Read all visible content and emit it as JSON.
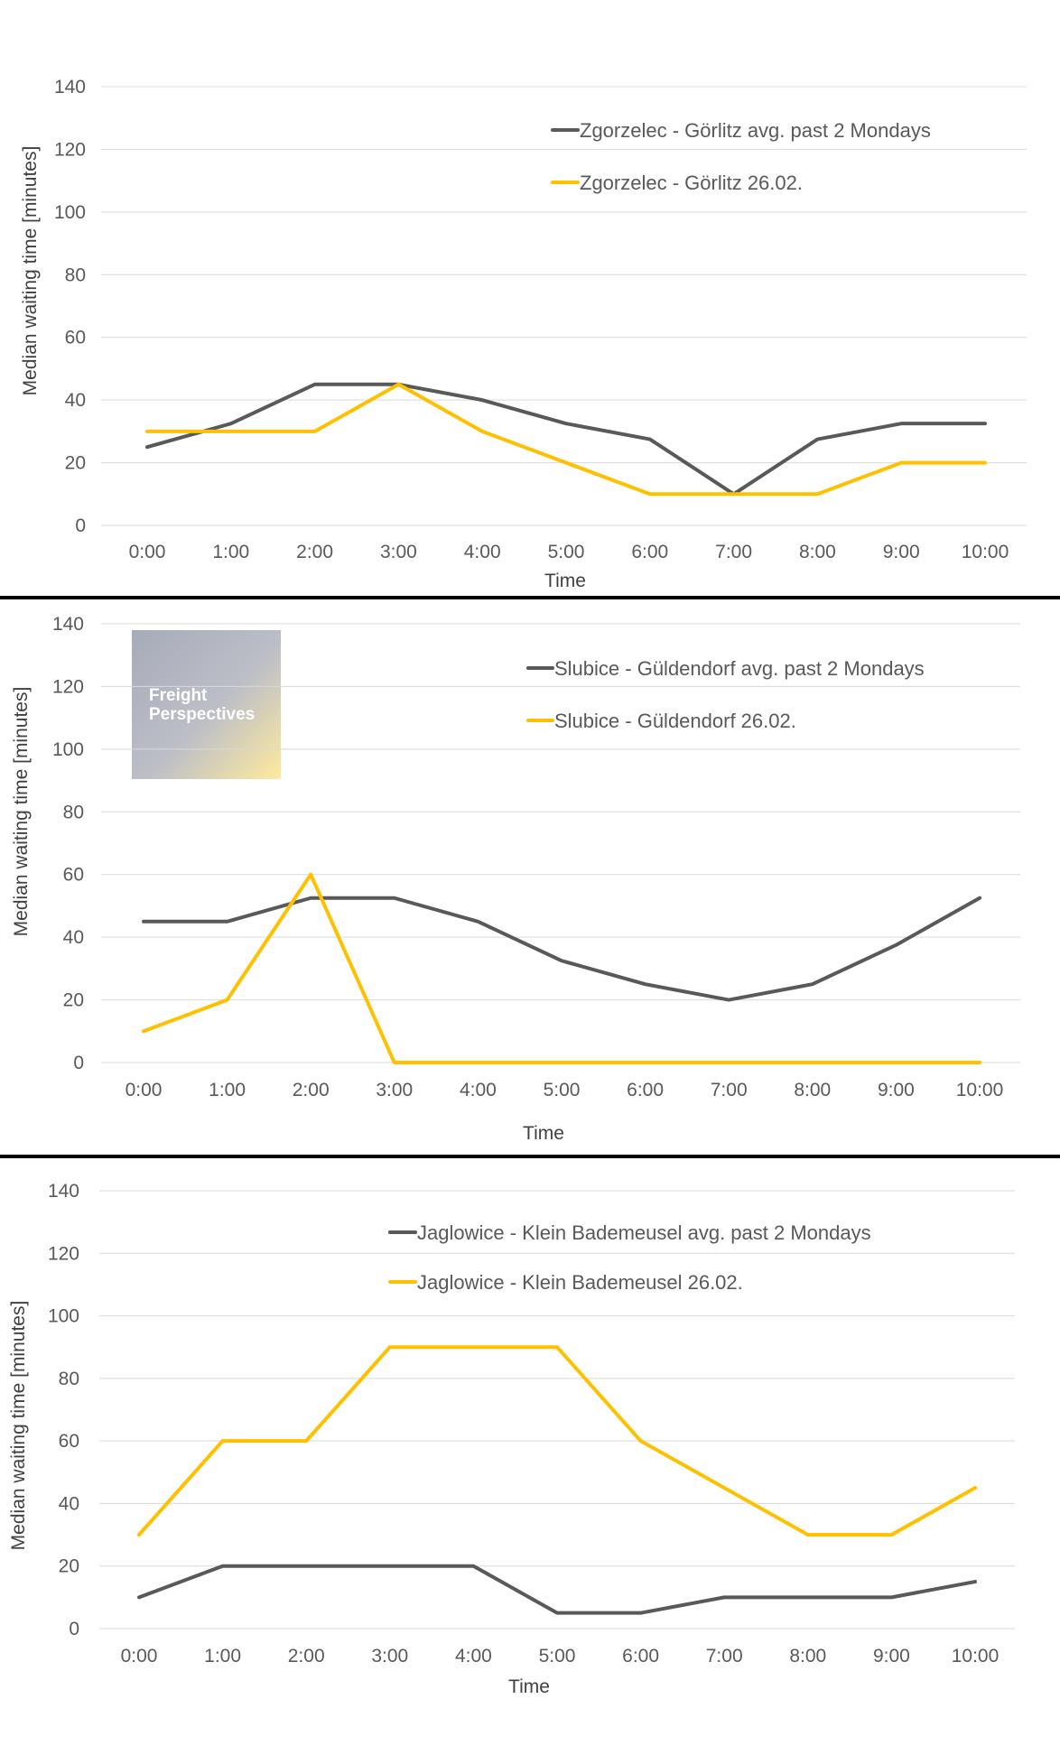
{
  "colors": {
    "avg": "#595959",
    "day": "#FFC000",
    "grid": "#d9d9d9"
  },
  "logo": {
    "line1": "Freight",
    "line2": "Perspectives"
  },
  "chart_data": [
    {
      "type": "line",
      "title": "",
      "xlabel": "Time",
      "ylabel": "Median waiting time [minutes]",
      "ylim": [
        0,
        140
      ],
      "yticks": [
        0,
        20,
        40,
        60,
        80,
        100,
        120,
        140
      ],
      "grid": true,
      "legend_position": "top-right",
      "categories": [
        "0:00",
        "1:00",
        "2:00",
        "3:00",
        "4:00",
        "5:00",
        "6:00",
        "7:00",
        "8:00",
        "9:00",
        "10:00"
      ],
      "series": [
        {
          "name": "Zgorzelec - Görlitz avg. past 2 Mondays",
          "color": "#595959",
          "values": [
            25,
            32.5,
            45,
            45,
            40,
            32.5,
            27.5,
            10,
            27.5,
            32.5,
            32.5
          ]
        },
        {
          "name": "Zgorzelec - Görlitz 26.02.",
          "color": "#FFC000",
          "values": [
            30,
            30,
            30,
            45,
            30,
            20,
            10,
            10,
            10,
            20,
            20
          ]
        }
      ]
    },
    {
      "type": "line",
      "title": "",
      "xlabel": "Time",
      "ylabel": "Median waiting time [minutes]",
      "ylim": [
        0,
        140
      ],
      "yticks": [
        0,
        20,
        40,
        60,
        80,
        100,
        120,
        140
      ],
      "grid": true,
      "legend_position": "top-right",
      "categories": [
        "0:00",
        "1:00",
        "2:00",
        "3:00",
        "4:00",
        "5:00",
        "6:00",
        "7:00",
        "8:00",
        "9:00",
        "10:00"
      ],
      "series": [
        {
          "name": "Slubice - Güldendorf avg. past 2 Mondays",
          "color": "#595959",
          "values": [
            45,
            45,
            52.5,
            52.5,
            45,
            32.5,
            25,
            20,
            25,
            37.5,
            52.5
          ]
        },
        {
          "name": "Slubice - Güldendorf 26.02.",
          "color": "#FFC000",
          "values": [
            10,
            20,
            60,
            0,
            0,
            0,
            0,
            0,
            0,
            0,
            0
          ]
        }
      ]
    },
    {
      "type": "line",
      "title": "",
      "xlabel": "Time",
      "ylabel": "Median waiting time [minutes]",
      "ylim": [
        0,
        140
      ],
      "yticks": [
        0,
        20,
        40,
        60,
        80,
        100,
        120,
        140
      ],
      "grid": true,
      "legend_position": "top-center",
      "categories": [
        "0:00",
        "1:00",
        "2:00",
        "3:00",
        "4:00",
        "5:00",
        "6:00",
        "7:00",
        "8:00",
        "9:00",
        "10:00"
      ],
      "series": [
        {
          "name": "Jaglowice - Klein Bademeusel  avg. past 2 Mondays",
          "color": "#595959",
          "values": [
            10,
            20,
            20,
            20,
            20,
            5,
            5,
            10,
            10,
            10,
            15
          ]
        },
        {
          "name": "Jaglowice - Klein Bademeusel  26.02.",
          "color": "#FFC000",
          "values": [
            30,
            60,
            60,
            90,
            90,
            90,
            60,
            45,
            30,
            30,
            45
          ]
        }
      ]
    }
  ]
}
